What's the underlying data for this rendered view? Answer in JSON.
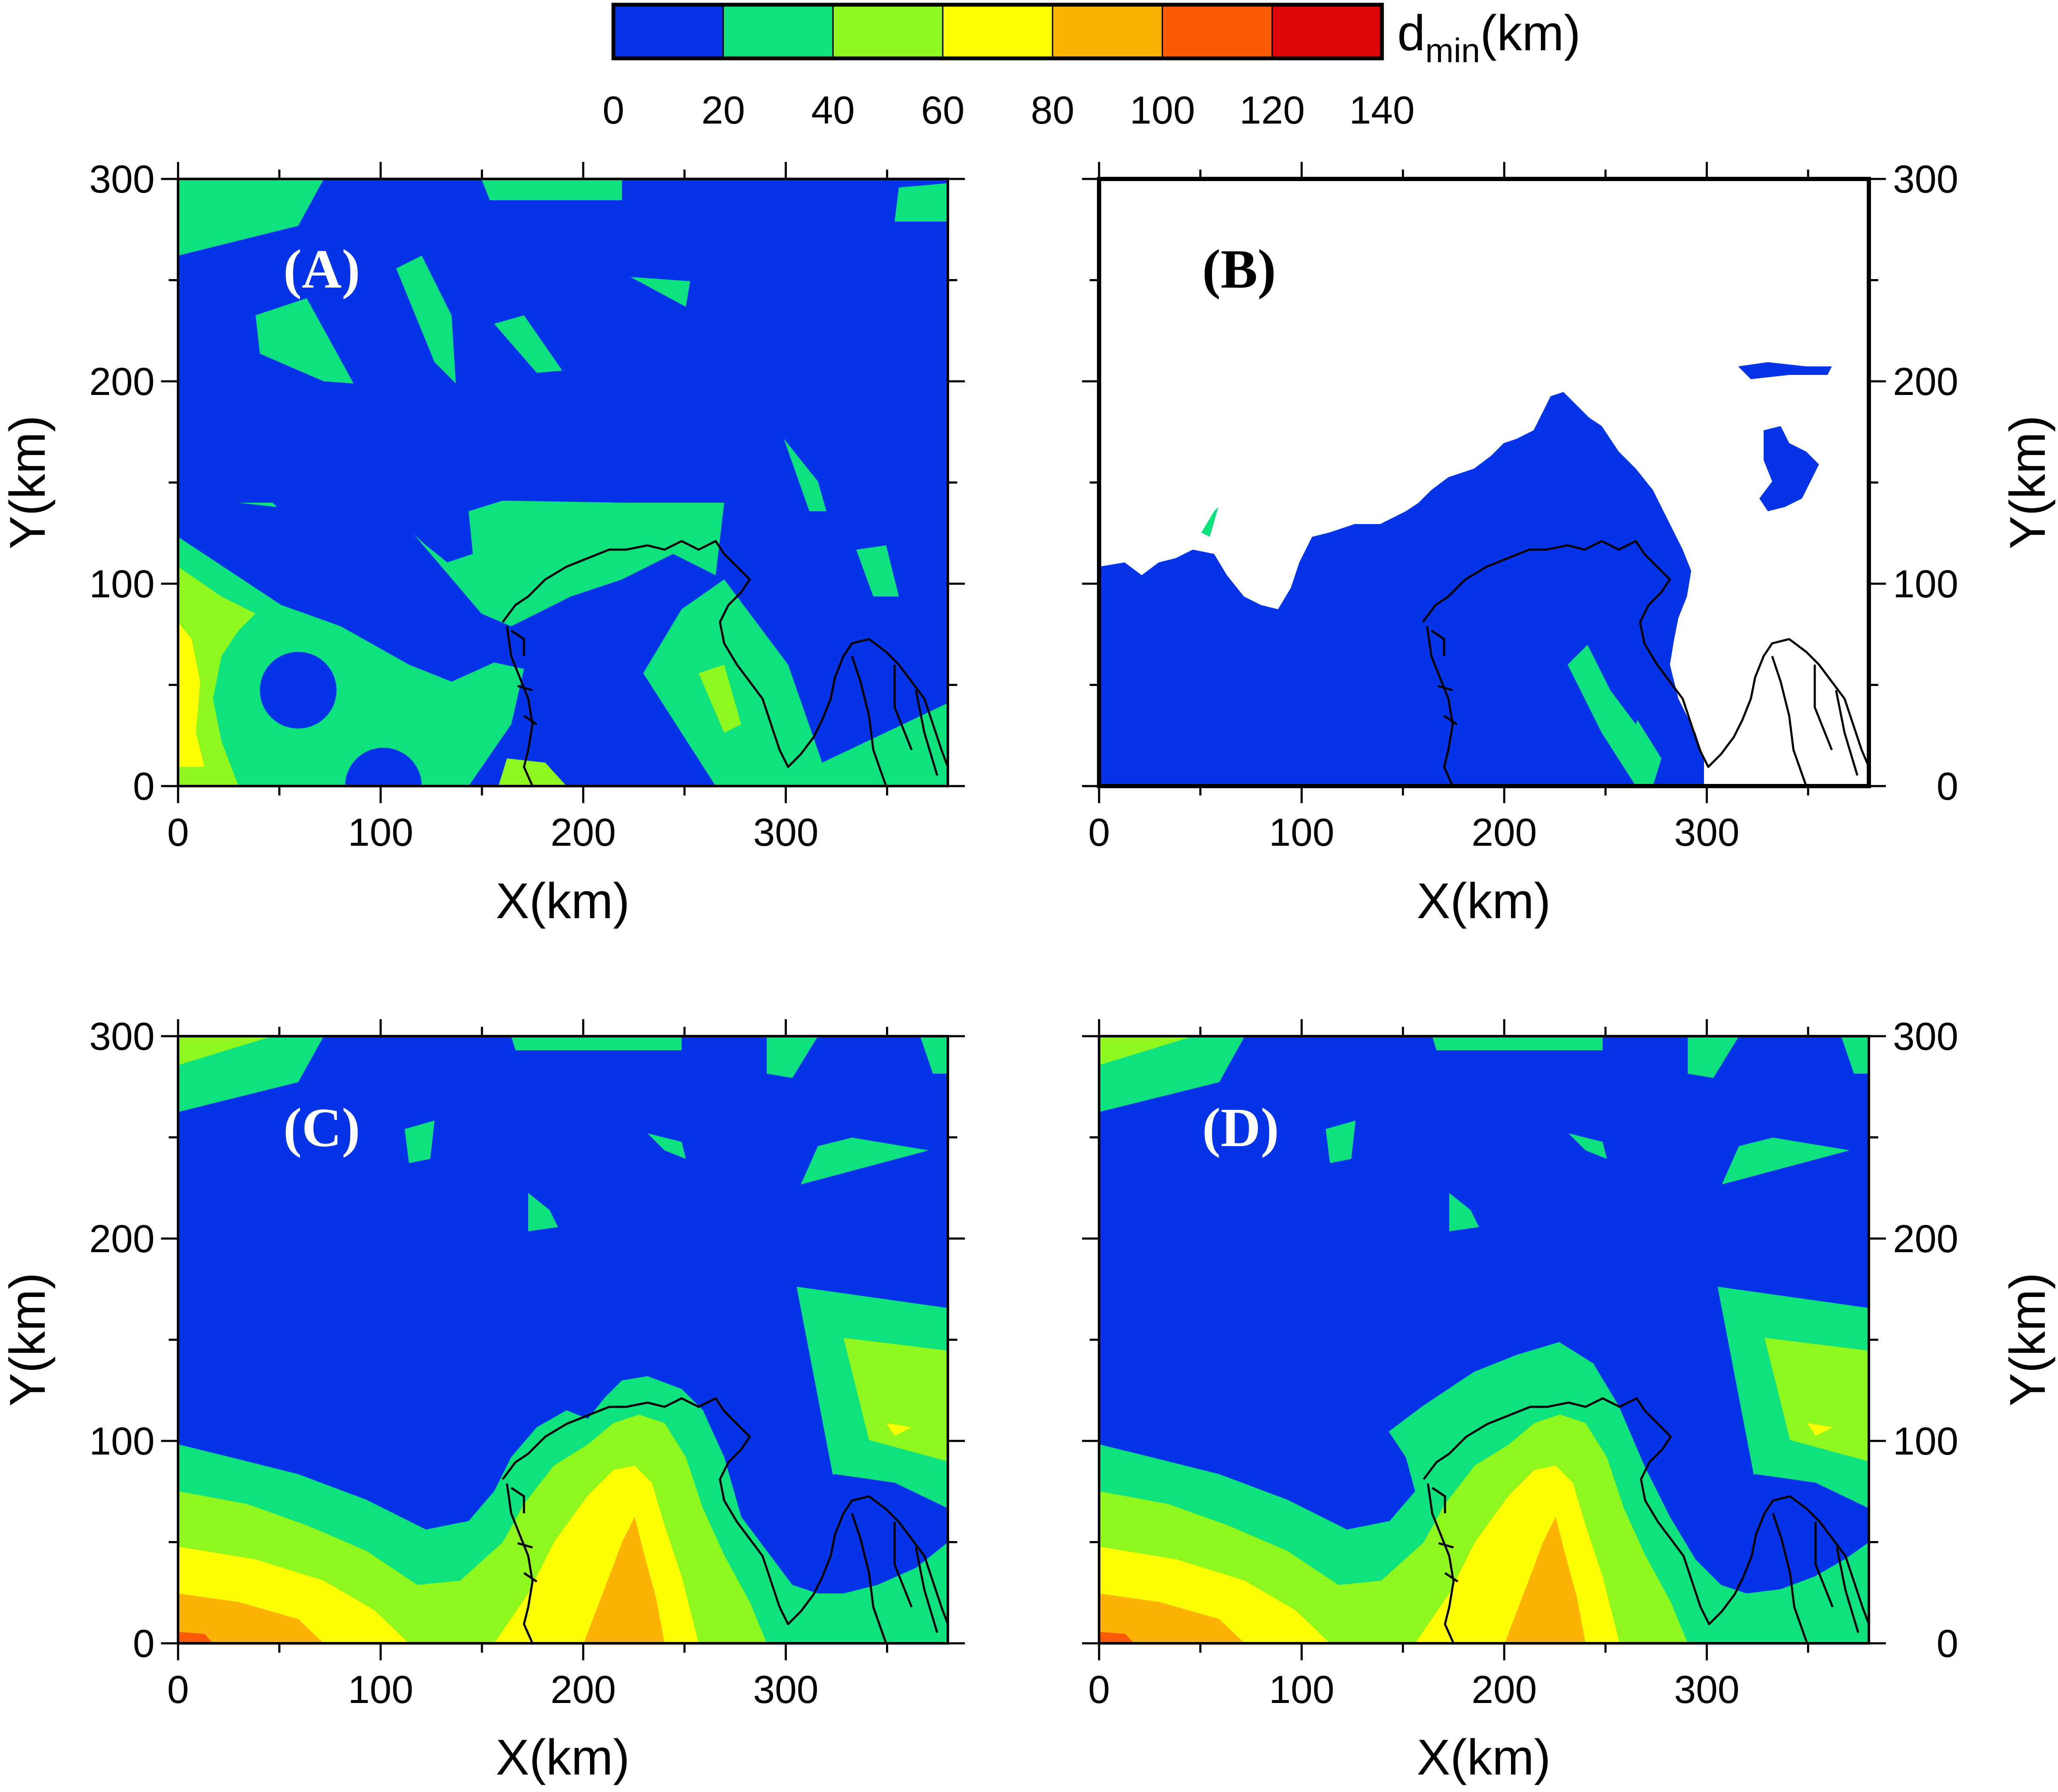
{
  "colorbar": {
    "title_main": "d",
    "title_sub": "min",
    "title_unit": "(km)",
    "ticks": [
      "0",
      "20",
      "40",
      "60",
      "80",
      "100",
      "120",
      "140"
    ],
    "bins": [
      {
        "from": 0,
        "to": 20,
        "color": "#0433E8"
      },
      {
        "from": 20,
        "to": 40,
        "color": "#0EE27E"
      },
      {
        "from": 40,
        "to": 60,
        "color": "#8EF71E"
      },
      {
        "from": 60,
        "to": 80,
        "color": "#FEFE04"
      },
      {
        "from": 80,
        "to": 100,
        "color": "#FDB306"
      },
      {
        "from": 100,
        "to": 120,
        "color": "#FD5A04"
      },
      {
        "from": 120,
        "to": 140,
        "color": "#DE0506"
      }
    ]
  },
  "chart_data": [
    {
      "type": "heatmap",
      "panel": "(A)",
      "xlabel": "X(km)",
      "ylabel": "Y(km)",
      "xlim": [
        0,
        380
      ],
      "ylim": [
        0,
        300
      ],
      "xticks": [
        "0",
        "100",
        "200",
        "300"
      ],
      "yticks": [
        "0",
        "100",
        "200",
        "300"
      ],
      "dominant_class": "0-20",
      "classes_present": [
        "0-20",
        "20-40",
        "40-60",
        "60-80"
      ]
    },
    {
      "type": "heatmap",
      "panel": "(B)",
      "xlabel": "X(km)",
      "ylabel": "Y(km)",
      "xlim": [
        0,
        380
      ],
      "ylim": [
        0,
        300
      ],
      "xticks": [
        "0",
        "100",
        "200",
        "300"
      ],
      "yticks": [
        "0",
        "100",
        "200",
        "300"
      ],
      "dominant_class": "0-20",
      "classes_present": [
        "0-20",
        "20-40"
      ],
      "no_data_region": "north and east"
    },
    {
      "type": "heatmap",
      "panel": "(C)",
      "xlabel": "X(km)",
      "ylabel": "Y(km)",
      "xlim": [
        0,
        380
      ],
      "ylim": [
        0,
        300
      ],
      "xticks": [
        "0",
        "100",
        "200",
        "300"
      ],
      "yticks": [
        "0",
        "100",
        "200",
        "300"
      ],
      "dominant_class": "0-20",
      "classes_present": [
        "0-20",
        "20-40",
        "40-60",
        "60-80",
        "80-100",
        "100-120"
      ]
    },
    {
      "type": "heatmap",
      "panel": "(D)",
      "xlabel": "X(km)",
      "ylabel": "Y(km)",
      "xlim": [
        0,
        380
      ],
      "ylim": [
        0,
        300
      ],
      "xticks": [
        "0",
        "100",
        "200",
        "300"
      ],
      "yticks": [
        "0",
        "100",
        "200",
        "300"
      ],
      "dominant_class": "0-20",
      "classes_present": [
        "0-20",
        "20-40",
        "40-60",
        "60-80",
        "80-100",
        "100-120"
      ]
    }
  ]
}
